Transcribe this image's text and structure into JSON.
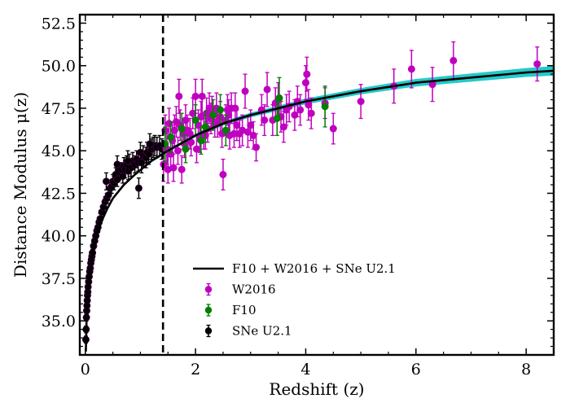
{
  "chart_data": {
    "type": "scatter",
    "title": "",
    "xlabel": "Redshift (z)",
    "ylabel": "Distance Modulus μ(z)",
    "xlim": [
      -0.1,
      8.5
    ],
    "ylim": [
      33.0,
      53.0
    ],
    "x_ticks": [
      0,
      2,
      4,
      6,
      8
    ],
    "x_tick_labels": [
      "0",
      "2",
      "4",
      "6",
      "8"
    ],
    "y_ticks": [
      35.0,
      37.5,
      40.0,
      42.5,
      45.0,
      47.5,
      50.0,
      52.5
    ],
    "y_tick_labels": [
      "35.0",
      "37.5",
      "40.0",
      "42.5",
      "45.0",
      "47.5",
      "50.0",
      "52.5"
    ],
    "vline_x": 1.41,
    "legend_position": "lower-center",
    "colors": {
      "fit": "#000000",
      "band": "#00bfbf",
      "W2016": "#c000c0",
      "F10": "#007f00",
      "SNe": "#000000",
      "vline": "#000000"
    },
    "fit_line": {
      "name": "F10 + W2016 + SNe U2.1",
      "x": [
        0.01,
        0.02,
        0.04,
        0.07,
        0.1,
        0.15,
        0.2,
        0.3,
        0.4,
        0.5,
        0.7,
        0.9,
        1.2,
        1.5,
        2.0,
        2.5,
        3.0,
        3.5,
        4.0,
        5.0,
        6.0,
        7.0,
        8.0,
        8.5
      ],
      "y": [
        33.2,
        34.8,
        36.4,
        37.6,
        38.3,
        39.4,
        40.0,
        40.9,
        41.6,
        42.2,
        43.0,
        43.6,
        44.4,
        45.0,
        45.9,
        46.6,
        47.1,
        47.5,
        47.9,
        48.5,
        49.0,
        49.3,
        49.6,
        49.7
      ],
      "band_halfwidth": [
        0.0,
        0.0,
        0.0,
        0.0,
        0.0,
        0.0,
        0.0,
        0.0,
        0.0,
        0.0,
        0.0,
        0.0,
        0.02,
        0.03,
        0.05,
        0.07,
        0.09,
        0.1,
        0.12,
        0.14,
        0.17,
        0.19,
        0.21,
        0.23
      ]
    },
    "series": [
      {
        "name": "W2016",
        "x": [
          1.42,
          1.45,
          1.48,
          1.5,
          1.52,
          1.55,
          1.58,
          1.6,
          1.62,
          1.65,
          1.68,
          1.7,
          1.72,
          1.75,
          1.78,
          1.8,
          1.82,
          1.85,
          1.9,
          1.92,
          1.95,
          2.0,
          2.02,
          2.05,
          2.08,
          2.1,
          2.12,
          2.15,
          2.18,
          2.2,
          2.22,
          2.25,
          2.28,
          2.3,
          2.35,
          2.38,
          2.4,
          2.45,
          2.48,
          2.5,
          2.55,
          2.58,
          2.6,
          2.62,
          2.65,
          2.7,
          2.72,
          2.75,
          2.8,
          2.85,
          2.9,
          2.95,
          3.0,
          3.05,
          3.1,
          3.2,
          3.25,
          3.3,
          3.4,
          3.45,
          3.5,
          3.55,
          3.6,
          3.65,
          3.7,
          3.8,
          3.85,
          3.9,
          4.0,
          4.02,
          4.05,
          4.1,
          4.35,
          4.5,
          5.0,
          5.6,
          5.92,
          6.3,
          6.68,
          8.2
        ],
        "y": [
          44.2,
          46.2,
          45.1,
          43.9,
          46.6,
          44.8,
          45.6,
          44.0,
          46.2,
          46.7,
          45.0,
          48.2,
          46.5,
          43.9,
          46.0,
          45.4,
          46.8,
          46.2,
          46.0,
          45.5,
          47.2,
          48.2,
          45.1,
          46.5,
          45.7,
          47.0,
          48.2,
          46.0,
          45.9,
          47.2,
          46.3,
          47.5,
          46.9,
          47.3,
          46.6,
          47.5,
          46.7,
          47.0,
          46.0,
          43.6,
          46.8,
          47.4,
          47.1,
          45.9,
          47.5,
          46.0,
          47.5,
          46.5,
          46.0,
          46.2,
          48.5,
          46.1,
          46.5,
          45.9,
          45.2,
          47.4,
          46.8,
          48.6,
          46.8,
          47.8,
          48.0,
          47.0,
          46.4,
          47.4,
          47.6,
          47.1,
          47.9,
          47.4,
          49.0,
          49.5,
          47.7,
          47.2,
          47.8,
          46.3,
          47.9,
          48.8,
          49.8,
          48.9,
          50.3,
          50.1
        ],
        "err": [
          1.0,
          0.9,
          0.9,
          0.8,
          0.9,
          0.8,
          0.9,
          0.8,
          0.9,
          0.9,
          0.8,
          1.0,
          0.9,
          0.8,
          0.9,
          0.8,
          0.9,
          0.9,
          0.9,
          0.8,
          0.9,
          1.0,
          0.8,
          0.9,
          0.8,
          0.9,
          1.0,
          0.9,
          0.8,
          0.9,
          0.8,
          0.9,
          0.9,
          0.9,
          0.8,
          0.9,
          0.9,
          0.9,
          0.8,
          0.9,
          0.9,
          0.9,
          0.9,
          0.8,
          0.9,
          0.8,
          0.9,
          0.9,
          0.8,
          0.9,
          1.0,
          0.9,
          0.9,
          0.8,
          0.8,
          0.9,
          0.9,
          1.0,
          0.9,
          0.9,
          1.0,
          0.9,
          0.9,
          0.9,
          0.9,
          0.9,
          0.9,
          0.9,
          1.0,
          1.0,
          0.9,
          0.9,
          0.9,
          0.9,
          1.0,
          1.0,
          1.1,
          1.0,
          1.1,
          1.0
        ]
      },
      {
        "name": "F10",
        "x": [
          1.45,
          1.55,
          1.75,
          1.82,
          2.0,
          2.1,
          2.18,
          2.32,
          2.45,
          2.55,
          3.48,
          3.52,
          4.35
        ],
        "y": [
          45.4,
          45.8,
          46.3,
          45.1,
          46.8,
          45.6,
          46.4,
          47.1,
          47.4,
          46.2,
          46.9,
          48.1,
          47.6
        ],
        "err": [
          1.0,
          0.9,
          0.9,
          0.8,
          0.9,
          0.8,
          0.9,
          0.9,
          0.9,
          0.9,
          1.0,
          1.2,
          1.2
        ]
      },
      {
        "name": "SNe U2.1",
        "x": [
          0.01,
          0.015,
          0.02,
          0.025,
          0.03,
          0.035,
          0.04,
          0.045,
          0.05,
          0.06,
          0.07,
          0.08,
          0.09,
          0.1,
          0.11,
          0.12,
          0.13,
          0.15,
          0.17,
          0.19,
          0.21,
          0.23,
          0.25,
          0.27,
          0.3,
          0.33,
          0.36,
          0.39,
          0.42,
          0.45,
          0.48,
          0.5,
          0.52,
          0.55,
          0.58,
          0.6,
          0.62,
          0.65,
          0.68,
          0.7,
          0.72,
          0.75,
          0.78,
          0.8,
          0.83,
          0.86,
          0.9,
          0.93,
          0.96,
          1.0,
          1.02,
          1.05,
          1.1,
          1.12,
          1.15,
          1.2,
          1.23,
          1.26,
          1.3,
          1.35,
          1.39,
          0.38,
          0.58,
          0.77,
          0.97,
          1.17
        ],
        "y": [
          33.9,
          34.5,
          35.2,
          35.6,
          35.9,
          36.2,
          36.5,
          36.7,
          37.0,
          37.3,
          37.6,
          37.9,
          38.1,
          38.4,
          38.6,
          38.8,
          39.0,
          39.4,
          39.7,
          40.0,
          40.3,
          40.5,
          40.8,
          41.0,
          41.4,
          41.7,
          42.0,
          42.2,
          42.4,
          42.8,
          42.9,
          43.2,
          43.1,
          43.6,
          43.3,
          43.8,
          43.7,
          43.9,
          43.5,
          44.1,
          43.9,
          44.2,
          43.8,
          44.3,
          44.0,
          44.4,
          44.2,
          44.5,
          44.3,
          44.9,
          44.3,
          44.7,
          44.6,
          44.9,
          44.8,
          45.1,
          45.2,
          45.3,
          45.2,
          45.3,
          45.1,
          43.2,
          44.2,
          44.4,
          42.8,
          45.4
        ],
        "err": [
          0.2,
          0.2,
          0.2,
          0.2,
          0.2,
          0.2,
          0.2,
          0.2,
          0.2,
          0.2,
          0.2,
          0.2,
          0.2,
          0.2,
          0.2,
          0.2,
          0.2,
          0.2,
          0.2,
          0.2,
          0.2,
          0.3,
          0.3,
          0.3,
          0.3,
          0.3,
          0.3,
          0.3,
          0.3,
          0.3,
          0.4,
          0.4,
          0.4,
          0.4,
          0.4,
          0.4,
          0.4,
          0.4,
          0.4,
          0.5,
          0.5,
          0.5,
          0.5,
          0.5,
          0.5,
          0.5,
          0.5,
          0.5,
          0.5,
          0.6,
          0.6,
          0.6,
          0.6,
          0.6,
          0.6,
          0.6,
          0.6,
          0.6,
          0.6,
          0.6,
          0.6,
          0.5,
          0.5,
          0.6,
          0.6,
          0.6
        ]
      }
    ]
  }
}
